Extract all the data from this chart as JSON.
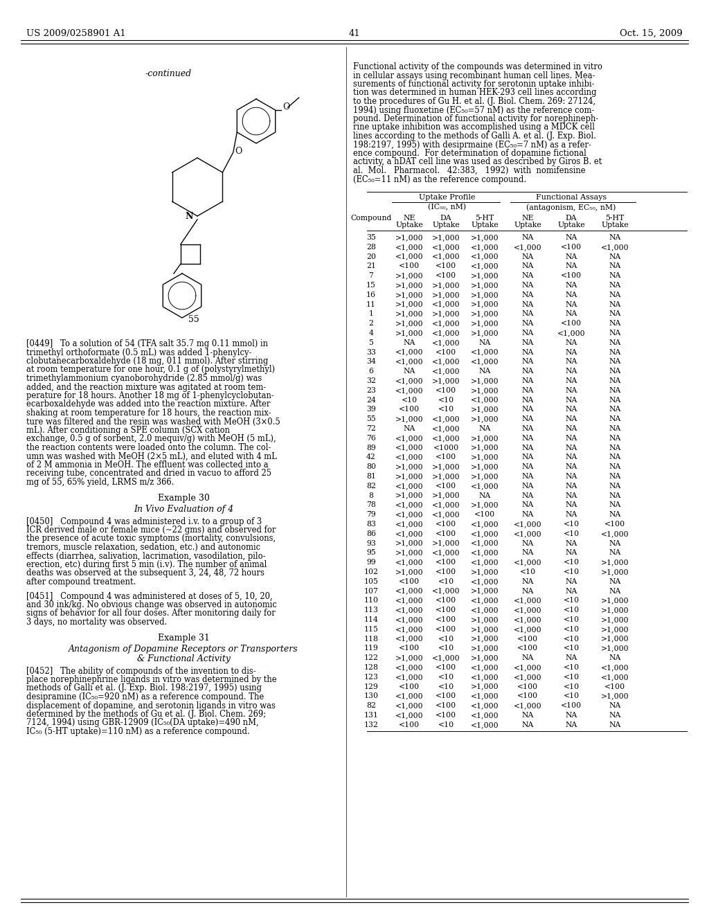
{
  "header_left": "US 2009/0258901 A1",
  "header_right": "Oct. 15, 2009",
  "page_number": "41",
  "background_color": "#ffffff",
  "table_data": [
    [
      "35",
      ">1,000",
      ">1,000",
      ">1,000",
      "NA",
      "NA",
      "NA"
    ],
    [
      "28",
      "<1,000",
      "<1,000",
      "<1,000",
      "<1,000",
      "<100",
      "<1,000"
    ],
    [
      "20",
      "<1,000",
      "<1,000",
      "<1,000",
      "NA",
      "NA",
      "NA"
    ],
    [
      "21",
      "<100",
      "<100",
      "<1,000",
      "NA",
      "NA",
      "NA"
    ],
    [
      "7",
      ">1,000",
      "<100",
      ">1,000",
      "NA",
      "<100",
      "NA"
    ],
    [
      "15",
      ">1,000",
      ">1,000",
      ">1,000",
      "NA",
      "NA",
      "NA"
    ],
    [
      "16",
      ">1,000",
      ">1,000",
      ">1,000",
      "NA",
      "NA",
      "NA"
    ],
    [
      "11",
      ">1,000",
      "<1,000",
      ">1,000",
      "NA",
      "NA",
      "NA"
    ],
    [
      "1",
      ">1,000",
      ">1,000",
      ">1,000",
      "NA",
      "NA",
      "NA"
    ],
    [
      "2",
      ">1,000",
      "<1,000",
      ">1,000",
      "NA",
      "<100",
      "NA"
    ],
    [
      "4",
      ">1,000",
      "<1,000",
      ">1,000",
      "NA",
      "<1,000",
      "NA"
    ],
    [
      "5",
      "NA",
      "<1,000",
      "NA",
      "NA",
      "NA",
      "NA"
    ],
    [
      "33",
      "<1,000",
      "<100",
      "<1,000",
      "NA",
      "NA",
      "NA"
    ],
    [
      "34",
      "<1,000",
      "<1,000",
      "<1,000",
      "NA",
      "NA",
      "NA"
    ],
    [
      "6",
      "NA",
      "<1,000",
      "NA",
      "NA",
      "NA",
      "NA"
    ],
    [
      "32",
      "<1,000",
      ">1,000",
      ">1,000",
      "NA",
      "NA",
      "NA"
    ],
    [
      "23",
      "<1,000",
      "<100",
      ">1,000",
      "NA",
      "NA",
      "NA"
    ],
    [
      "24",
      "<10",
      "<10",
      "<1,000",
      "NA",
      "NA",
      "NA"
    ],
    [
      "39",
      "<100",
      "<10",
      ">1,000",
      "NA",
      "NA",
      "NA"
    ],
    [
      "55",
      ">1,000",
      "<1,000",
      ">1,000",
      "NA",
      "NA",
      "NA"
    ],
    [
      "72",
      "NA",
      "<1,000",
      "NA",
      "NA",
      "NA",
      "NA"
    ],
    [
      "76",
      "<1,000",
      "<1,000",
      ">1,000",
      "NA",
      "NA",
      "NA"
    ],
    [
      "89",
      "<1,000",
      "<1000",
      ">1,000",
      "NA",
      "NA",
      "NA"
    ],
    [
      "42",
      "<1,000",
      "<100",
      ">1,000",
      "NA",
      "NA",
      "NA"
    ],
    [
      "80",
      ">1,000",
      ">1,000",
      ">1,000",
      "NA",
      "NA",
      "NA"
    ],
    [
      "81",
      ">1,000",
      ">1,000",
      ">1,000",
      "NA",
      "NA",
      "NA"
    ],
    [
      "82",
      "<1,000",
      "<100",
      "<1,000",
      "NA",
      "NA",
      "NA"
    ],
    [
      "8",
      ">1,000",
      ">1,000",
      "NA",
      "NA",
      "NA",
      "NA"
    ],
    [
      "78",
      "<1,000",
      "<1,000",
      ">1,000",
      "NA",
      "NA",
      "NA"
    ],
    [
      "79",
      "<1,000",
      "<1,000",
      "<100",
      "NA",
      "NA",
      "NA"
    ],
    [
      "83",
      "<1,000",
      "<100",
      "<1,000",
      "<1,000",
      "<10",
      "<100"
    ],
    [
      "86",
      "<1,000",
      "<100",
      "<1,000",
      "<1,000",
      "<10",
      "<1,000"
    ],
    [
      "93",
      ">1,000",
      ">1,000",
      "<1,000",
      "NA",
      "NA",
      "NA"
    ],
    [
      "95",
      ">1,000",
      "<1,000",
      "<1,000",
      "NA",
      "NA",
      "NA"
    ],
    [
      "99",
      "<1,000",
      "<100",
      "<1,000",
      "<1,000",
      "<10",
      ">1,000"
    ],
    [
      "102",
      ">1,000",
      "<100",
      ">1,000",
      "<10",
      "<10",
      ">1,000"
    ],
    [
      "105",
      "<100",
      "<10",
      "<1,000",
      "NA",
      "NA",
      "NA"
    ],
    [
      "107",
      "<1,000",
      "<1,000",
      ">1,000",
      "NA",
      "NA",
      "NA"
    ],
    [
      "110",
      "<1,000",
      "<100",
      "<1,000",
      "<1,000",
      "<10",
      ">1,000"
    ],
    [
      "113",
      "<1,000",
      "<100",
      "<1,000",
      "<1,000",
      "<10",
      ">1,000"
    ],
    [
      "114",
      "<1,000",
      "<100",
      ">1,000",
      "<1,000",
      "<10",
      ">1,000"
    ],
    [
      "115",
      "<1,000",
      "<100",
      ">1,000",
      "<1,000",
      "<10",
      ">1,000"
    ],
    [
      "118",
      "<1,000",
      "<10",
      ">1,000",
      "<100",
      "<10",
      ">1,000"
    ],
    [
      "119",
      "<100",
      "<10",
      ">1,000",
      "<100",
      "<10",
      ">1,000"
    ],
    [
      "122",
      ">1,000",
      "<1,000",
      ">1,000",
      "NA",
      "NA",
      "NA"
    ],
    [
      "128",
      "<1,000",
      "<100",
      "<1,000",
      "<1,000",
      "<10",
      "<1,000"
    ],
    [
      "123",
      "<1,000",
      "<10",
      "<1,000",
      "<1,000",
      "<10",
      "<1,000"
    ],
    [
      "129",
      "<100",
      "<10",
      ">1,000",
      "<100",
      "<10",
      "<100"
    ],
    [
      "130",
      "<1,000",
      "<100",
      "<1,000",
      "<100",
      "<10",
      ">1,000"
    ],
    [
      "82",
      "<1,000",
      "<100",
      "<1,000",
      "<1,000",
      "<100",
      "NA"
    ],
    [
      "131",
      "<1,000",
      "<100",
      "<1,000",
      "NA",
      "NA",
      "NA"
    ],
    [
      "132",
      "<100",
      "<10",
      "<1,000",
      "NA",
      "NA",
      "NA"
    ]
  ]
}
